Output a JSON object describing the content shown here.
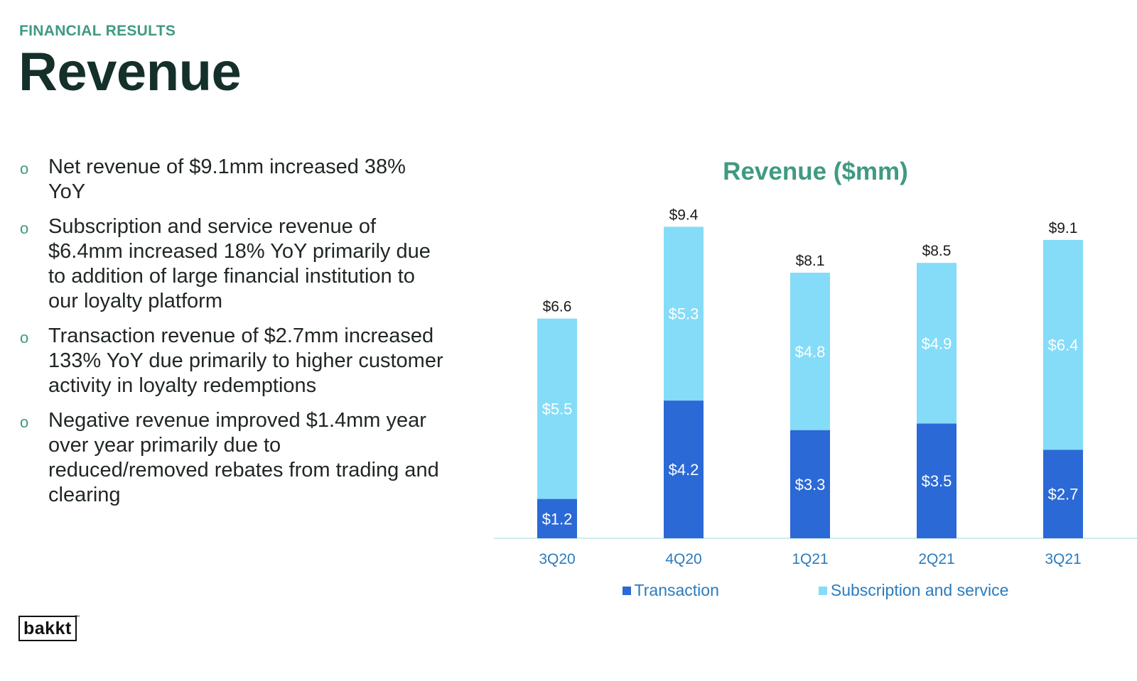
{
  "header": {
    "eyebrow": "FINANCIAL RESULTS",
    "title": "Revenue"
  },
  "bullets": [
    {
      "marker": "o",
      "text": "Net revenue of $9.1mm increased 38% YoY"
    },
    {
      "marker": "o",
      "text": "Subscription and service revenue of $6.4mm increased 18% YoY primarily due to addition of large financial institution to our loyalty platform"
    },
    {
      "marker": "o",
      "text": "Transaction revenue of $2.7mm increased 133% YoY due primarily to higher customer activity in loyalty redemptions"
    },
    {
      "marker": "o",
      "text": "Negative revenue improved $1.4mm year over year primarily due to reduced/removed rebates from trading and clearing"
    }
  ],
  "chart_data": {
    "type": "bar",
    "stacked": true,
    "title": "Revenue ($mm)",
    "categories": [
      "3Q20",
      "4Q20",
      "1Q21",
      "2Q21",
      "3Q21"
    ],
    "series": [
      {
        "name": "Transaction",
        "color": "#2a69d6",
        "values": [
          1.2,
          4.2,
          3.3,
          3.5,
          2.7
        ],
        "labels": [
          "$1.2",
          "$4.2",
          "$3.3",
          "$3.5",
          "$2.7"
        ]
      },
      {
        "name": "Subscription and service",
        "color": "#84dcf8",
        "values": [
          5.5,
          5.3,
          4.8,
          4.9,
          6.4
        ],
        "labels": [
          "$5.5",
          "$5.3",
          "$4.8",
          "$4.9",
          "$6.4"
        ]
      }
    ],
    "totals": [
      6.6,
      9.4,
      8.1,
      8.5,
      9.1
    ],
    "total_labels": [
      "$6.6",
      "$9.4",
      "$8.1",
      "$8.5",
      "$9.1"
    ],
    "ylim": [
      0,
      9.4
    ],
    "grid": false,
    "legend_position": "bottom",
    "axis_label_color": "#2b7bbd",
    "baseline_color": "#bfe6ea"
  },
  "footer": {
    "logo": "bakkt",
    "logo_tm": "™"
  }
}
